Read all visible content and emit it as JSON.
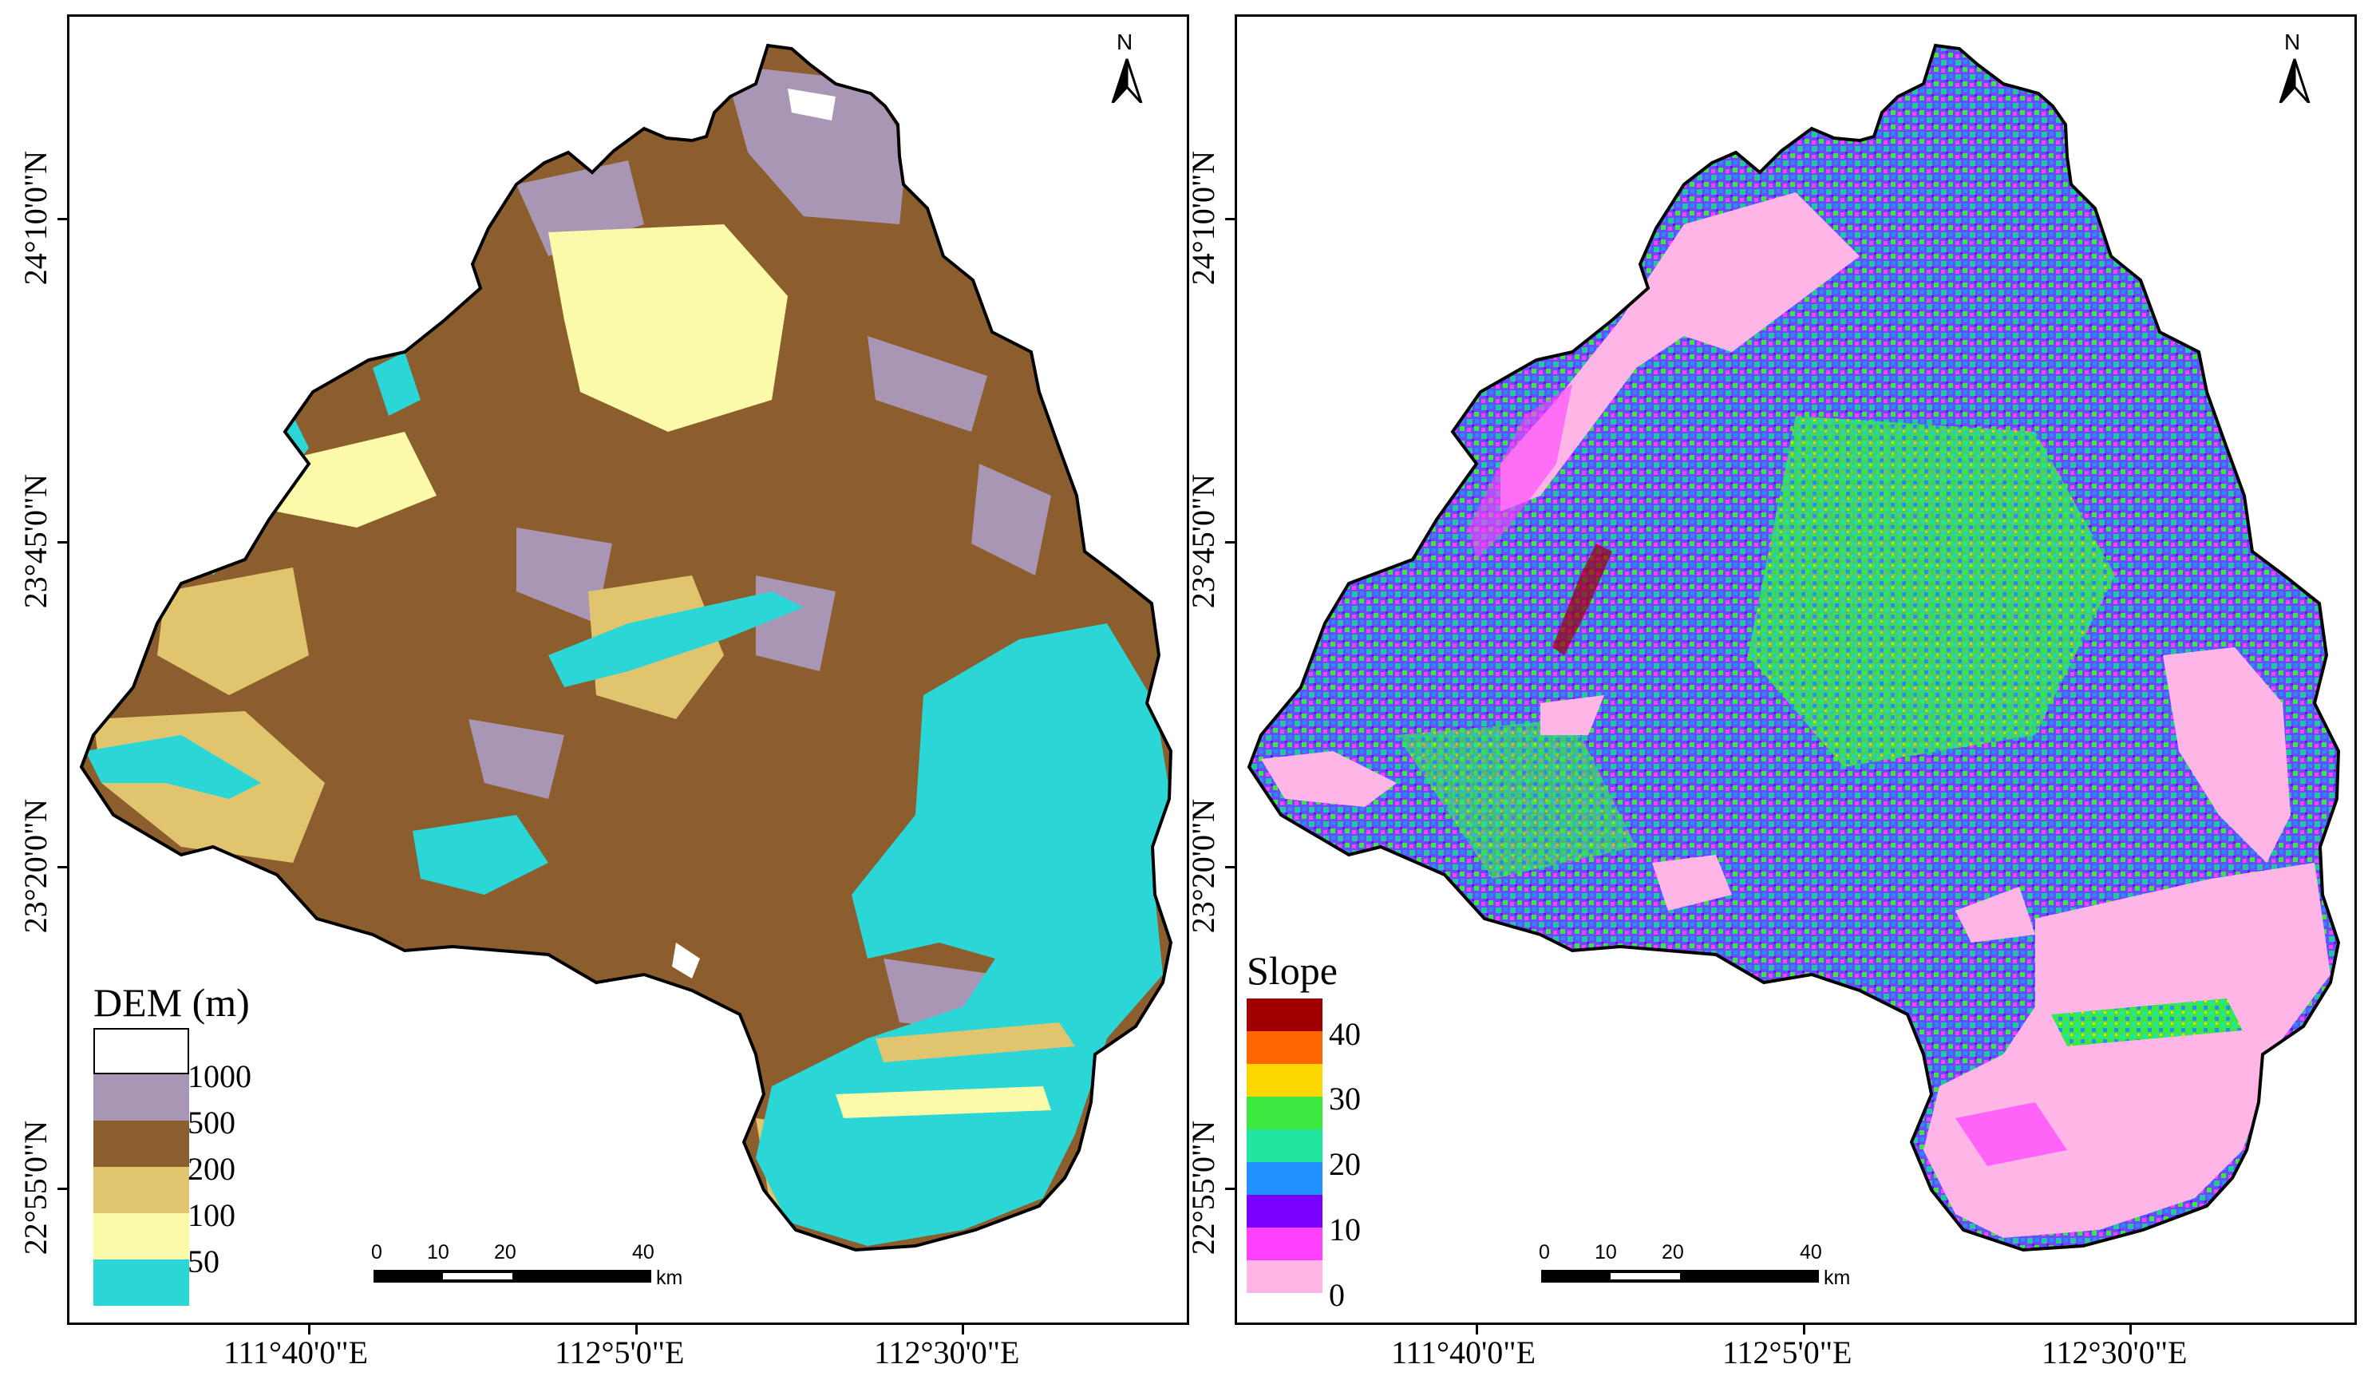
{
  "north_label": "N",
  "x_ticks": [
    "111°40'0\"E",
    "112°5'0\"E",
    "112°30'0\"E"
  ],
  "y_ticks": [
    "24°10'0\"N",
    "23°45'0\"N",
    "23°20'0\"N",
    "22°55'0\"N"
  ],
  "scale": {
    "values": [
      "0",
      "10",
      "20",
      "40"
    ],
    "unit": "km"
  },
  "dem": {
    "legend_title": "DEM (m)",
    "classes": [
      {
        "label": "1000",
        "color": "#ffffff"
      },
      {
        "label": "500",
        "color": "#a896b4"
      },
      {
        "label": "200",
        "color": "#8c5e2e"
      },
      {
        "label": "100",
        "color": "#e0c56e"
      },
      {
        "label": "50",
        "color": "#fafaa8"
      },
      {
        "label": "",
        "color": "#2ad6d6"
      }
    ]
  },
  "slope": {
    "legend_title": "Slope",
    "labels": [
      "40",
      "30",
      "20",
      "10",
      "0"
    ],
    "colors": [
      "#a00000",
      "#ff6600",
      "#ffd700",
      "#3ee640",
      "#20e6a0",
      "#1e90ff",
      "#7a00ff",
      "#ff40ff",
      "#ffb6e6"
    ]
  }
}
